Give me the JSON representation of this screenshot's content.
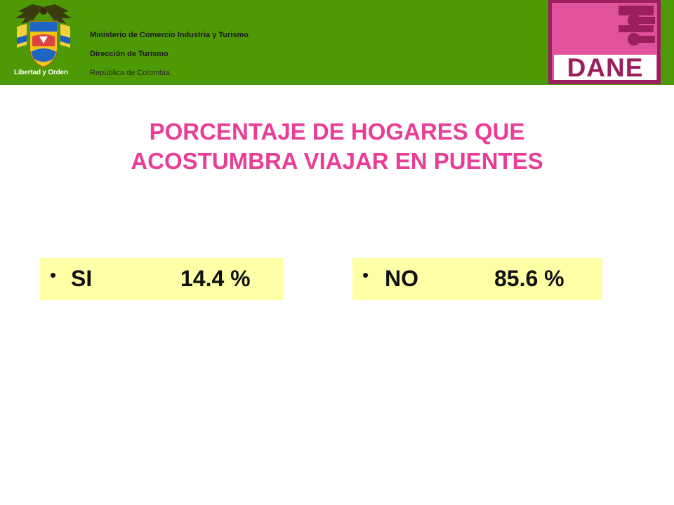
{
  "header": {
    "crest_motto": "Libertad y Orden",
    "ministry_line1": "Ministerio de Comercio Industria y Turismo",
    "ministry_line2": "Dirección de Turismo",
    "ministry_line3": "República de Colombia",
    "logo_text": "DANE",
    "bar_color": "#4e9a06",
    "logo_color": "#e0529b"
  },
  "title": {
    "line1": "PORCENTAJE DE HOGARES QUE",
    "line2": "ACOSTUMBRA VIAJAR EN PUENTES",
    "color": "#e83e95"
  },
  "results": [
    {
      "bullet": "•",
      "label": "SI",
      "value": "14.4 %"
    },
    {
      "bullet": "•",
      "label": "NO",
      "value": "85.6 %"
    }
  ]
}
